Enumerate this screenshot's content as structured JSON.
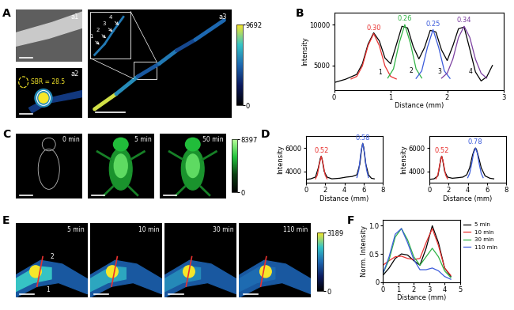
{
  "chart_data": [
    {
      "panel": "B",
      "type": "line",
      "x_label": "Distance (mm)",
      "y_label": "Intensity",
      "xlim": [
        0,
        3
      ],
      "xticks": [
        0,
        1,
        2,
        3
      ],
      "ylim": [
        2000,
        11500
      ],
      "yticks": [
        5000,
        10000
      ],
      "series": [
        {
          "color": "#000000",
          "x": [
            0,
            0.2,
            0.4,
            0.5,
            0.6,
            0.7,
            0.8,
            0.9,
            1.0,
            1.1,
            1.2,
            1.3,
            1.4,
            1.5,
            1.6,
            1.7,
            1.8,
            1.9,
            2.0,
            2.1,
            2.2,
            2.3,
            2.4,
            2.5,
            2.6,
            2.7,
            2.8
          ],
          "values": [
            2900,
            3300,
            3900,
            5200,
            7600,
            9000,
            8000,
            5900,
            5200,
            7500,
            9800,
            9600,
            7300,
            5800,
            7200,
            9300,
            9100,
            6900,
            5600,
            7400,
            9500,
            9700,
            7000,
            4200,
            3100,
            3600,
            5000
          ]
        },
        {
          "color": "#e8312f",
          "fwhm_label": "0.30",
          "peak_label": "1",
          "x": [
            0.3,
            0.4,
            0.5,
            0.6,
            0.7,
            0.8,
            0.9,
            1.0,
            1.1
          ],
          "values": [
            3340,
            3650,
            4930,
            7420,
            8900,
            7420,
            4930,
            3650,
            3340
          ]
        },
        {
          "color": "#2fb344",
          "fwhm_label": "0.26",
          "peak_label": "2",
          "x": [
            0.95,
            1.05,
            1.15,
            1.25,
            1.35,
            1.45,
            1.55
          ],
          "values": [
            3460,
            4570,
            7720,
            10000,
            7720,
            4570,
            3460
          ]
        },
        {
          "color": "#3b5bdb",
          "fwhm_label": "0.25",
          "peak_label": "3",
          "x": [
            1.45,
            1.55,
            1.65,
            1.75,
            1.85,
            1.95,
            2.05
          ],
          "values": [
            3410,
            4330,
            7200,
            9400,
            7200,
            4330,
            3410
          ]
        },
        {
          "color": "#7b3fa0",
          "fwhm_label": "0.34",
          "peak_label": "4",
          "x": [
            1.9,
            2.0,
            2.1,
            2.2,
            2.3,
            2.4,
            2.5,
            2.6,
            2.7
          ],
          "values": [
            3440,
            4040,
            5770,
            8430,
            9800,
            8430,
            5770,
            4040,
            3440
          ]
        }
      ]
    },
    {
      "panel": "D",
      "type": "line",
      "x_label": "Distance (mm)",
      "y_label": "Intensity",
      "xlim": [
        0,
        8
      ],
      "xticks": [
        0,
        2,
        4,
        6,
        8
      ],
      "ylim": [
        3000,
        7000
      ],
      "yticks": [
        4000,
        6000
      ],
      "series": [
        {
          "color": "#000000",
          "x": [
            0,
            0.5,
            1.0,
            1.3,
            1.5,
            1.6,
            1.7,
            1.9,
            2.2,
            2.7,
            3.5,
            4.2,
            4.8,
            5.3,
            5.6,
            5.8,
            5.9,
            6.0,
            6.2,
            6.5,
            6.8,
            7.1
          ],
          "values": [
            3300,
            3350,
            3500,
            4300,
            5100,
            5300,
            5000,
            4000,
            3500,
            3350,
            3400,
            3500,
            3550,
            3700,
            4600,
            6000,
            6400,
            6100,
            4700,
            3700,
            3400,
            3350
          ]
        },
        {
          "color": "#e8312f",
          "fwhm_label": "0.52",
          "x": [
            1.0,
            1.2,
            1.4,
            1.6,
            1.8,
            2.0,
            2.2
          ],
          "values": [
            3350,
            3690,
            4620,
            5300,
            4620,
            3690,
            3350
          ]
        },
        {
          "color": "#3b5bdb",
          "fwhm_label": "0.58",
          "x": [
            5.3,
            5.5,
            5.7,
            5.9,
            6.1,
            6.3,
            6.5
          ],
          "values": [
            3460,
            4130,
            5530,
            6400,
            5530,
            4130,
            3460
          ]
        }
      ]
    },
    {
      "type": "line",
      "x_label": "Distance (mm)",
      "y_label": "Intensity",
      "xlim": [
        0,
        8
      ],
      "xticks": [
        0,
        2,
        4,
        6,
        8
      ],
      "ylim": [
        3000,
        7000
      ],
      "yticks": [
        4000,
        6000
      ],
      "series": [
        {
          "color": "#000000",
          "x": [
            0,
            0.5,
            0.9,
            1.1,
            1.2,
            1.3,
            1.4,
            1.6,
            1.9,
            2.4,
            3.0,
            3.5,
            3.9,
            4.2,
            4.5,
            4.7,
            4.8,
            4.9,
            5.1,
            5.4,
            5.8,
            6.3,
            6.7
          ],
          "values": [
            3300,
            3350,
            3600,
            4500,
            5100,
            5300,
            5000,
            4000,
            3500,
            3400,
            3450,
            3500,
            3700,
            4300,
            5400,
            5900,
            6000,
            5900,
            5300,
            4300,
            3600,
            3400,
            3350
          ]
        },
        {
          "color": "#e8312f",
          "fwhm_label": "0.52",
          "x": [
            0.7,
            0.9,
            1.1,
            1.3,
            1.5,
            1.7,
            1.9
          ],
          "values": [
            3350,
            3690,
            4620,
            5300,
            4620,
            3690,
            3350
          ]
        },
        {
          "color": "#3b5bdb",
          "fwhm_label": "0.78",
          "x": [
            4.0,
            4.2,
            4.4,
            4.6,
            4.8,
            5.0,
            5.2,
            5.4,
            5.6
          ],
          "values": [
            3450,
            3820,
            4600,
            5540,
            6000,
            5540,
            4600,
            3820,
            3450
          ]
        }
      ]
    },
    {
      "panel": "F",
      "type": "line",
      "x_label": "Distance (mm)",
      "y_label": "Norm. Intensity",
      "xlim": [
        0,
        5
      ],
      "xticks": [
        0,
        1,
        2,
        3,
        4,
        5
      ],
      "ylim": [
        0,
        1.1
      ],
      "yticks": [
        0,
        0.5,
        {
          "value": 1,
          "label": "1.0"
        }
      ],
      "legend": "right",
      "series": [
        {
          "name": "5 min",
          "color": "#000000",
          "x": [
            0,
            0.4,
            0.8,
            1.2,
            1.6,
            2.0,
            2.4,
            2.8,
            3.2,
            3.6,
            4.0,
            4.4
          ],
          "values": [
            0.12,
            0.25,
            0.42,
            0.5,
            0.48,
            0.38,
            0.3,
            0.6,
            1.0,
            0.7,
            0.25,
            0.1
          ]
        },
        {
          "name": "10 min",
          "color": "#e8312f",
          "x": [
            0,
            0.4,
            0.8,
            1.2,
            1.6,
            2.0,
            2.4,
            2.8,
            3.2,
            3.6,
            4.0,
            4.4
          ],
          "values": [
            0.3,
            0.38,
            0.45,
            0.46,
            0.42,
            0.4,
            0.42,
            0.7,
            0.95,
            0.65,
            0.25,
            0.12
          ]
        },
        {
          "name": "30 min",
          "color": "#2fb344",
          "x": [
            0,
            0.4,
            0.8,
            1.2,
            1.6,
            2.0,
            2.4,
            2.8,
            3.2,
            3.6,
            4.0,
            4.4
          ],
          "values": [
            0.15,
            0.4,
            0.8,
            0.95,
            0.75,
            0.45,
            0.3,
            0.45,
            0.6,
            0.45,
            0.2,
            0.08
          ]
        },
        {
          "name": "110 min",
          "color": "#3b5bdb",
          "x": [
            0,
            0.4,
            0.8,
            1.2,
            1.6,
            2.0,
            2.4,
            2.8,
            3.2,
            3.6,
            4.0,
            4.4
          ],
          "values": [
            0.15,
            0.45,
            0.85,
            0.95,
            0.7,
            0.4,
            0.22,
            0.22,
            0.25,
            0.2,
            0.1,
            0.05
          ]
        }
      ]
    }
  ],
  "images": {
    "A": {
      "panel": "A",
      "a1": "a1",
      "a2": "a2",
      "a3": "a3",
      "sbr": "SBR = 28.5",
      "vessel_labels": [
        "1",
        "2",
        "3",
        "4"
      ],
      "colorbar": {
        "range": [
          0,
          9692
        ],
        "ticks": [
          0,
          9692
        ]
      }
    },
    "C": {
      "panel": "C",
      "times": [
        "0 min",
        "5 min",
        "50 min"
      ],
      "colorbar": {
        "range": [
          0,
          8397
        ],
        "ticks": [
          0,
          8397
        ]
      }
    },
    "E": {
      "panel": "E",
      "times": [
        "5 min",
        "10 min",
        "30 min",
        "110 min"
      ],
      "vessel_labels": [
        "1",
        "2"
      ],
      "colorbar": {
        "range": [
          0,
          3189
        ],
        "ticks": [
          0,
          3189
        ]
      }
    }
  }
}
